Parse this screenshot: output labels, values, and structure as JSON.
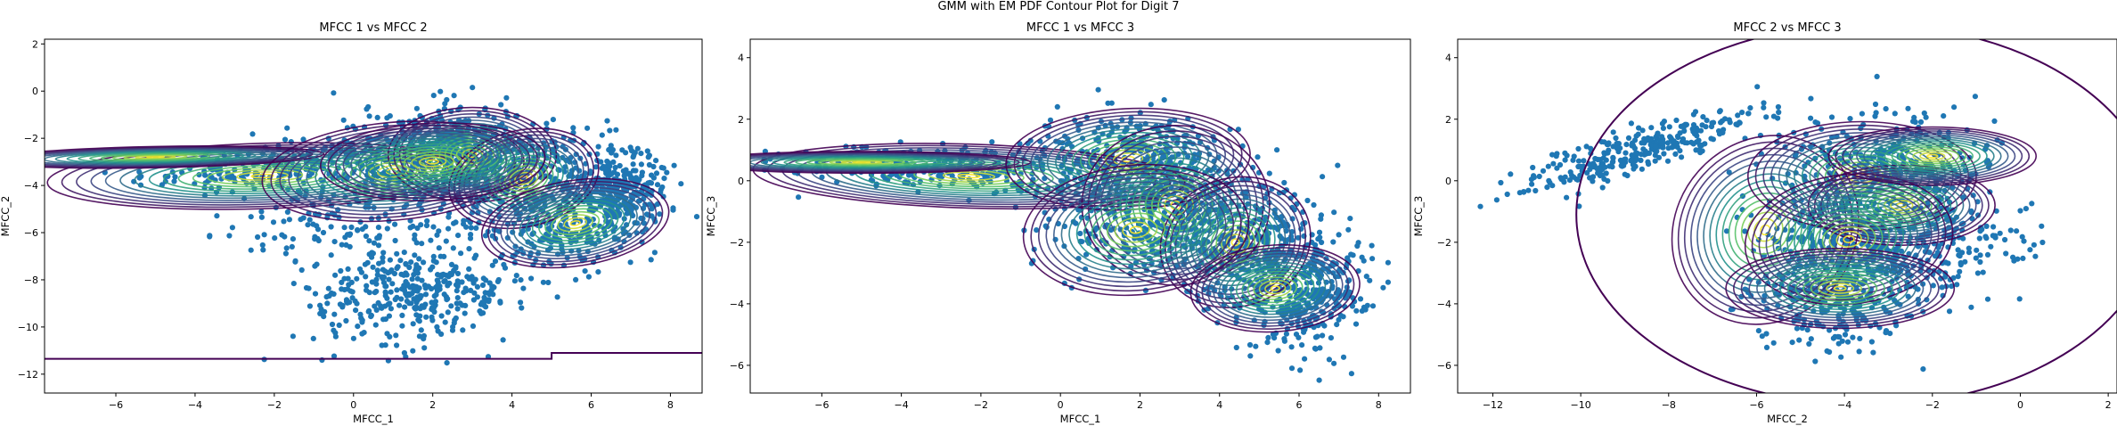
{
  "suptitle": "GMM with EM PDF Contour Plot for Digit 7",
  "colors": {
    "points": "#1f77b4",
    "contour_low": "#440154",
    "contour_mid": "#21918c",
    "contour_high": "#fde725"
  },
  "chart_data": [
    {
      "type": "scatter",
      "title": "MFCC 1 vs MFCC 2",
      "xlabel": "MFCC_1",
      "ylabel": "MFCC_2",
      "xlim": [
        -7.8,
        8.8
      ],
      "ylim": [
        -12.8,
        2.2
      ],
      "xticks": [
        -6,
        -4,
        -2,
        0,
        2,
        4,
        6,
        8
      ],
      "yticks": [
        2,
        0,
        -2,
        -4,
        -6,
        -8,
        -10,
        -12
      ],
      "overlay": "GMM PDF contours (viridis)",
      "point_clusters": [
        {
          "cx": -1.5,
          "cy": -3.2,
          "sx": 1.9,
          "sy": 0.55,
          "rho": 0.4,
          "n": 260
        },
        {
          "cx": 1.8,
          "cy": -2.6,
          "sx": 1.2,
          "sy": 1.0,
          "rho": 0.1,
          "n": 280
        },
        {
          "cx": 3.0,
          "cy": -2.7,
          "sx": 0.8,
          "sy": 0.9,
          "rho": 0.0,
          "n": 220
        },
        {
          "cx": 4.6,
          "cy": -4.0,
          "sx": 1.2,
          "sy": 1.3,
          "rho": 0.2,
          "n": 280
        },
        {
          "cx": 6.8,
          "cy": -4.2,
          "sx": 0.6,
          "sy": 0.8,
          "rho": 0.0,
          "n": 260
        },
        {
          "cx": 5.5,
          "cy": -5.8,
          "sx": 0.9,
          "sy": 0.9,
          "rho": 0.2,
          "n": 180
        },
        {
          "cx": 1.6,
          "cy": -8.6,
          "sx": 1.3,
          "sy": 1.0,
          "rho": 0.15,
          "n": 360
        },
        {
          "cx": 0.0,
          "cy": -5.5,
          "sx": 1.8,
          "sy": 1.0,
          "rho": 0.2,
          "n": 160
        }
      ],
      "components": [
        {
          "cx": -2.3,
          "cy": -3.6,
          "sx": 2.3,
          "sy": 0.6,
          "rho": 0.2
        },
        {
          "cx": -5.0,
          "cy": -2.8,
          "sx": 1.8,
          "sy": 0.2,
          "rho": 0.3
        },
        {
          "cx": 1.0,
          "cy": -3.4,
          "sx": 1.4,
          "sy": 0.9,
          "rho": 0.2
        },
        {
          "cx": 3.0,
          "cy": -2.7,
          "sx": 0.9,
          "sy": 0.85,
          "rho": 0.0
        },
        {
          "cx": 4.3,
          "cy": -3.7,
          "sx": 0.8,
          "sy": 0.9,
          "rho": 0.2
        },
        {
          "cx": 5.6,
          "cy": -5.6,
          "sx": 1.0,
          "sy": 0.8,
          "rho": 0.25
        },
        {
          "cx": 2.0,
          "cy": -3.0,
          "sx": 1.2,
          "sy": 0.7,
          "rho": 0.1
        }
      ],
      "boundary": [
        [
          -7.8,
          -11.35
        ],
        [
          5.0,
          -11.35
        ],
        [
          5.0,
          -11.1
        ],
        [
          8.8,
          -11.1
        ]
      ]
    },
    {
      "type": "scatter",
      "title": "MFCC 1 vs MFCC 3",
      "xlabel": "MFCC_1",
      "ylabel": "MFCC_3",
      "xlim": [
        -7.8,
        8.8
      ],
      "ylim": [
        -6.9,
        4.6
      ],
      "xticks": [
        -6,
        -4,
        -2,
        0,
        2,
        4,
        6,
        8
      ],
      "yticks": [
        4,
        2,
        0,
        -2,
        -4,
        -6
      ],
      "overlay": "GMM PDF contours (viridis)",
      "point_clusters": [
        {
          "cx": -3.0,
          "cy": 0.4,
          "sx": 2.0,
          "sy": 0.4,
          "rho": -0.3,
          "n": 260
        },
        {
          "cx": 1.5,
          "cy": 0.8,
          "sx": 1.2,
          "sy": 0.7,
          "rho": 0.1,
          "n": 300
        },
        {
          "cx": 3.0,
          "cy": -0.9,
          "sx": 0.9,
          "sy": 0.9,
          "rho": 0.0,
          "n": 260
        },
        {
          "cx": 5.2,
          "cy": -2.5,
          "sx": 0.9,
          "sy": 1.1,
          "rho": 0.1,
          "n": 320
        },
        {
          "cx": 6.3,
          "cy": -3.8,
          "sx": 0.7,
          "sy": 0.9,
          "rho": 0.2,
          "n": 260
        },
        {
          "cx": 2.0,
          "cy": -1.5,
          "sx": 1.4,
          "sy": 0.9,
          "rho": 0.1,
          "n": 220
        }
      ],
      "components": [
        {
          "cx": -2.3,
          "cy": 0.15,
          "sx": 2.3,
          "sy": 0.45,
          "rho": -0.2
        },
        {
          "cx": -5.0,
          "cy": 0.6,
          "sx": 1.8,
          "sy": 0.15,
          "rho": 0.0
        },
        {
          "cx": 1.7,
          "cy": 0.7,
          "sx": 1.3,
          "sy": 0.7,
          "rho": 0.1
        },
        {
          "cx": 2.9,
          "cy": -0.8,
          "sx": 1.0,
          "sy": 1.1,
          "rho": 0.0
        },
        {
          "cx": 4.4,
          "cy": -2.0,
          "sx": 0.8,
          "sy": 0.9,
          "rho": 0.1
        },
        {
          "cx": 5.4,
          "cy": -3.5,
          "sx": 0.9,
          "sy": 0.6,
          "rho": 0.1
        },
        {
          "cx": 1.9,
          "cy": -1.6,
          "sx": 1.2,
          "sy": 0.9,
          "rho": 0.1
        }
      ]
    },
    {
      "type": "scatter",
      "title": "MFCC 2 vs MFCC 3",
      "xlabel": "MFCC_2",
      "ylabel": "MFCC_3",
      "xlim": [
        -12.8,
        2.2
      ],
      "ylim": [
        -6.9,
        4.6
      ],
      "xticks": [
        -12,
        -10,
        -8,
        -6,
        -4,
        -2,
        0,
        2
      ],
      "yticks": [
        4,
        2,
        0,
        -2,
        -4,
        -6
      ],
      "overlay": "GMM PDF contours (viridis)",
      "point_clusters": [
        {
          "cx": -8.6,
          "cy": 1.0,
          "sx": 1.4,
          "sy": 0.7,
          "rho": 0.85,
          "n": 300
        },
        {
          "cx": -3.2,
          "cy": 0.5,
          "sx": 1.2,
          "sy": 0.9,
          "rho": 0.1,
          "n": 300
        },
        {
          "cx": -4.0,
          "cy": -2.0,
          "sx": 1.1,
          "sy": 1.1,
          "rho": 0.1,
          "n": 280
        },
        {
          "cx": -4.2,
          "cy": -3.8,
          "sx": 0.9,
          "sy": 0.8,
          "rho": 0.1,
          "n": 240
        },
        {
          "cx": -1.8,
          "cy": -2.0,
          "sx": 1.0,
          "sy": 0.9,
          "rho": 0.0,
          "n": 200
        }
      ],
      "components": [
        {
          "cx": -5.8,
          "cy": -1.6,
          "sx": 0.9,
          "sy": 1.3,
          "rho": 0.1
        },
        {
          "cx": -3.6,
          "cy": 0.15,
          "sx": 1.1,
          "sy": 0.75,
          "rho": 0.0
        },
        {
          "cx": -2.7,
          "cy": -0.8,
          "sx": 0.9,
          "sy": 0.55,
          "rho": 0.0
        },
        {
          "cx": -3.9,
          "cy": -1.9,
          "sx": 1.0,
          "sy": 0.9,
          "rho": 0.1
        },
        {
          "cx": -4.1,
          "cy": -3.5,
          "sx": 1.1,
          "sy": 0.55,
          "rho": 0.0
        },
        {
          "cx": -2.0,
          "cy": 0.8,
          "sx": 1.0,
          "sy": 0.4,
          "rho": 0.0
        }
      ],
      "boundary_ellipse": {
        "cx": -3.5,
        "cy": -1.1,
        "rx": 6.6,
        "ry": 6.2
      }
    }
  ]
}
